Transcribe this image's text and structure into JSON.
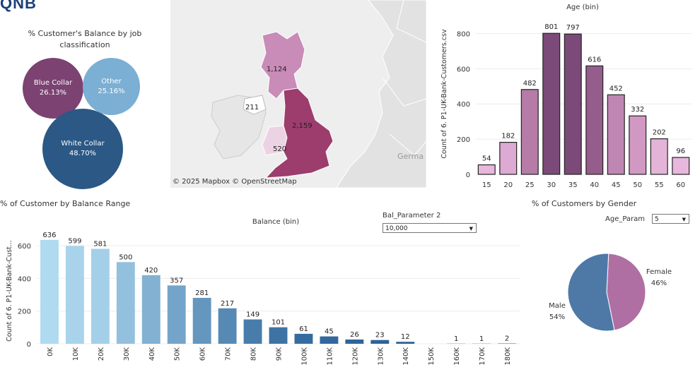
{
  "brand": {
    "logo_text": "QNB"
  },
  "job_classification": {
    "title": "% Customer's Balance by job classification",
    "bubbles": [
      {
        "label": "Blue Collar",
        "value": "26.13%",
        "color": "#7b4272"
      },
      {
        "label": "Other",
        "value": "25.16%",
        "color": "#7bafd4"
      },
      {
        "label": "White Collar",
        "value": "48.70%",
        "color": "#2b5885"
      }
    ]
  },
  "map": {
    "attribution": "© 2025 Mapbox  © OpenStreetMap",
    "region_labels": [
      "1,124",
      "211",
      "2,159",
      "520"
    ],
    "place_label": "Germa"
  },
  "age_chart": {
    "title": "Age (bin)",
    "ylabel": "Count of 6. P1-UK-Bank-Customers.csv",
    "chart_data": {
      "type": "bar",
      "categories": [
        "15",
        "20",
        "25",
        "30",
        "35",
        "40",
        "45",
        "50",
        "55",
        "60"
      ],
      "values": [
        54,
        182,
        482,
        801,
        797,
        616,
        452,
        332,
        202,
        96
      ],
      "yticks": [
        "0",
        "200",
        "400",
        "600",
        "800"
      ],
      "ylim": [
        0,
        870
      ]
    }
  },
  "balance_chart": {
    "section_title": "% of Customer by Balance Range",
    "title": "Balance (bin)",
    "ylabel": "Count of 6. P1-UK-Bank-Cust...",
    "chart_data": {
      "type": "bar",
      "categories": [
        "0K",
        "10K",
        "20K",
        "30K",
        "40K",
        "50K",
        "60K",
        "70K",
        "80K",
        "90K",
        "100K",
        "110K",
        "120K",
        "130K",
        "140K",
        "150K",
        "160K",
        "170K",
        "180K"
      ],
      "values": [
        636,
        599,
        581,
        500,
        420,
        357,
        281,
        217,
        149,
        101,
        61,
        45,
        26,
        23,
        12,
        0,
        1,
        1,
        2
      ],
      "labels": [
        "636",
        "599",
        "581",
        "500",
        "420",
        "357",
        "281",
        "217",
        "149",
        "101",
        "61",
        "45",
        "26",
        "23",
        "12",
        "",
        "1",
        "1",
        "2"
      ],
      "yticks": [
        "0",
        "200",
        "400",
        "600"
      ],
      "ylim": [
        0,
        700
      ]
    }
  },
  "balance_parameter": {
    "label": "Bal_Parameter 2",
    "value": "10,000"
  },
  "gender": {
    "title": "% of Customers by Gender",
    "param_label": "Age_Param",
    "param_value": "5",
    "chart_data": {
      "type": "pie",
      "slices": [
        {
          "name": "Female",
          "value": 46,
          "label": "46%",
          "color": "#b06fa2"
        },
        {
          "name": "Male",
          "value": 54,
          "label": "54%",
          "color": "#4e79a7"
        }
      ]
    }
  }
}
